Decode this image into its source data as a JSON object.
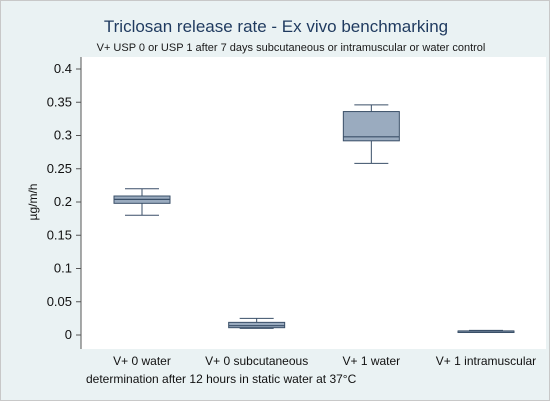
{
  "chart_data": {
    "type": "box",
    "title": "Triclosan release rate - Ex vivo benchmarking",
    "subtitle": "V+ USP 0 or USP 1 after 7 days subcutaneous or intramuscular or water control",
    "ylabel": "µg/m/h",
    "xnote": "determination after 12 hours in static water at 37°C",
    "ylim": [
      0,
      0.4
    ],
    "yticks": [
      "0",
      "0.05",
      "0.1",
      "0.15",
      "0.2",
      "0.25",
      "0.3",
      "0.35",
      "0.4"
    ],
    "grid": false,
    "categories": [
      "V+ 0 water",
      "V+ 0 subcutaneous",
      "V+ 1 water",
      "V+ 1 intramuscular"
    ],
    "boxes": [
      {
        "min": 0.18,
        "q1": 0.198,
        "median": 0.204,
        "q3": 0.209,
        "max": 0.22
      },
      {
        "min": 0.01,
        "q1": 0.011,
        "median": 0.014,
        "q3": 0.019,
        "max": 0.025
      },
      {
        "min": 0.258,
        "q1": 0.292,
        "median": 0.298,
        "q3": 0.336,
        "max": 0.346
      },
      {
        "min": 0.005,
        "q1": 0.005,
        "median": 0.006,
        "q3": 0.006,
        "max": 0.007
      }
    ],
    "colors": {
      "box_fill": "#9aabbf",
      "box_stroke": "#3a4f68",
      "axis": "#555555",
      "plot_bg": "#ffffff",
      "outer_bg": "#eaf2f3"
    }
  }
}
